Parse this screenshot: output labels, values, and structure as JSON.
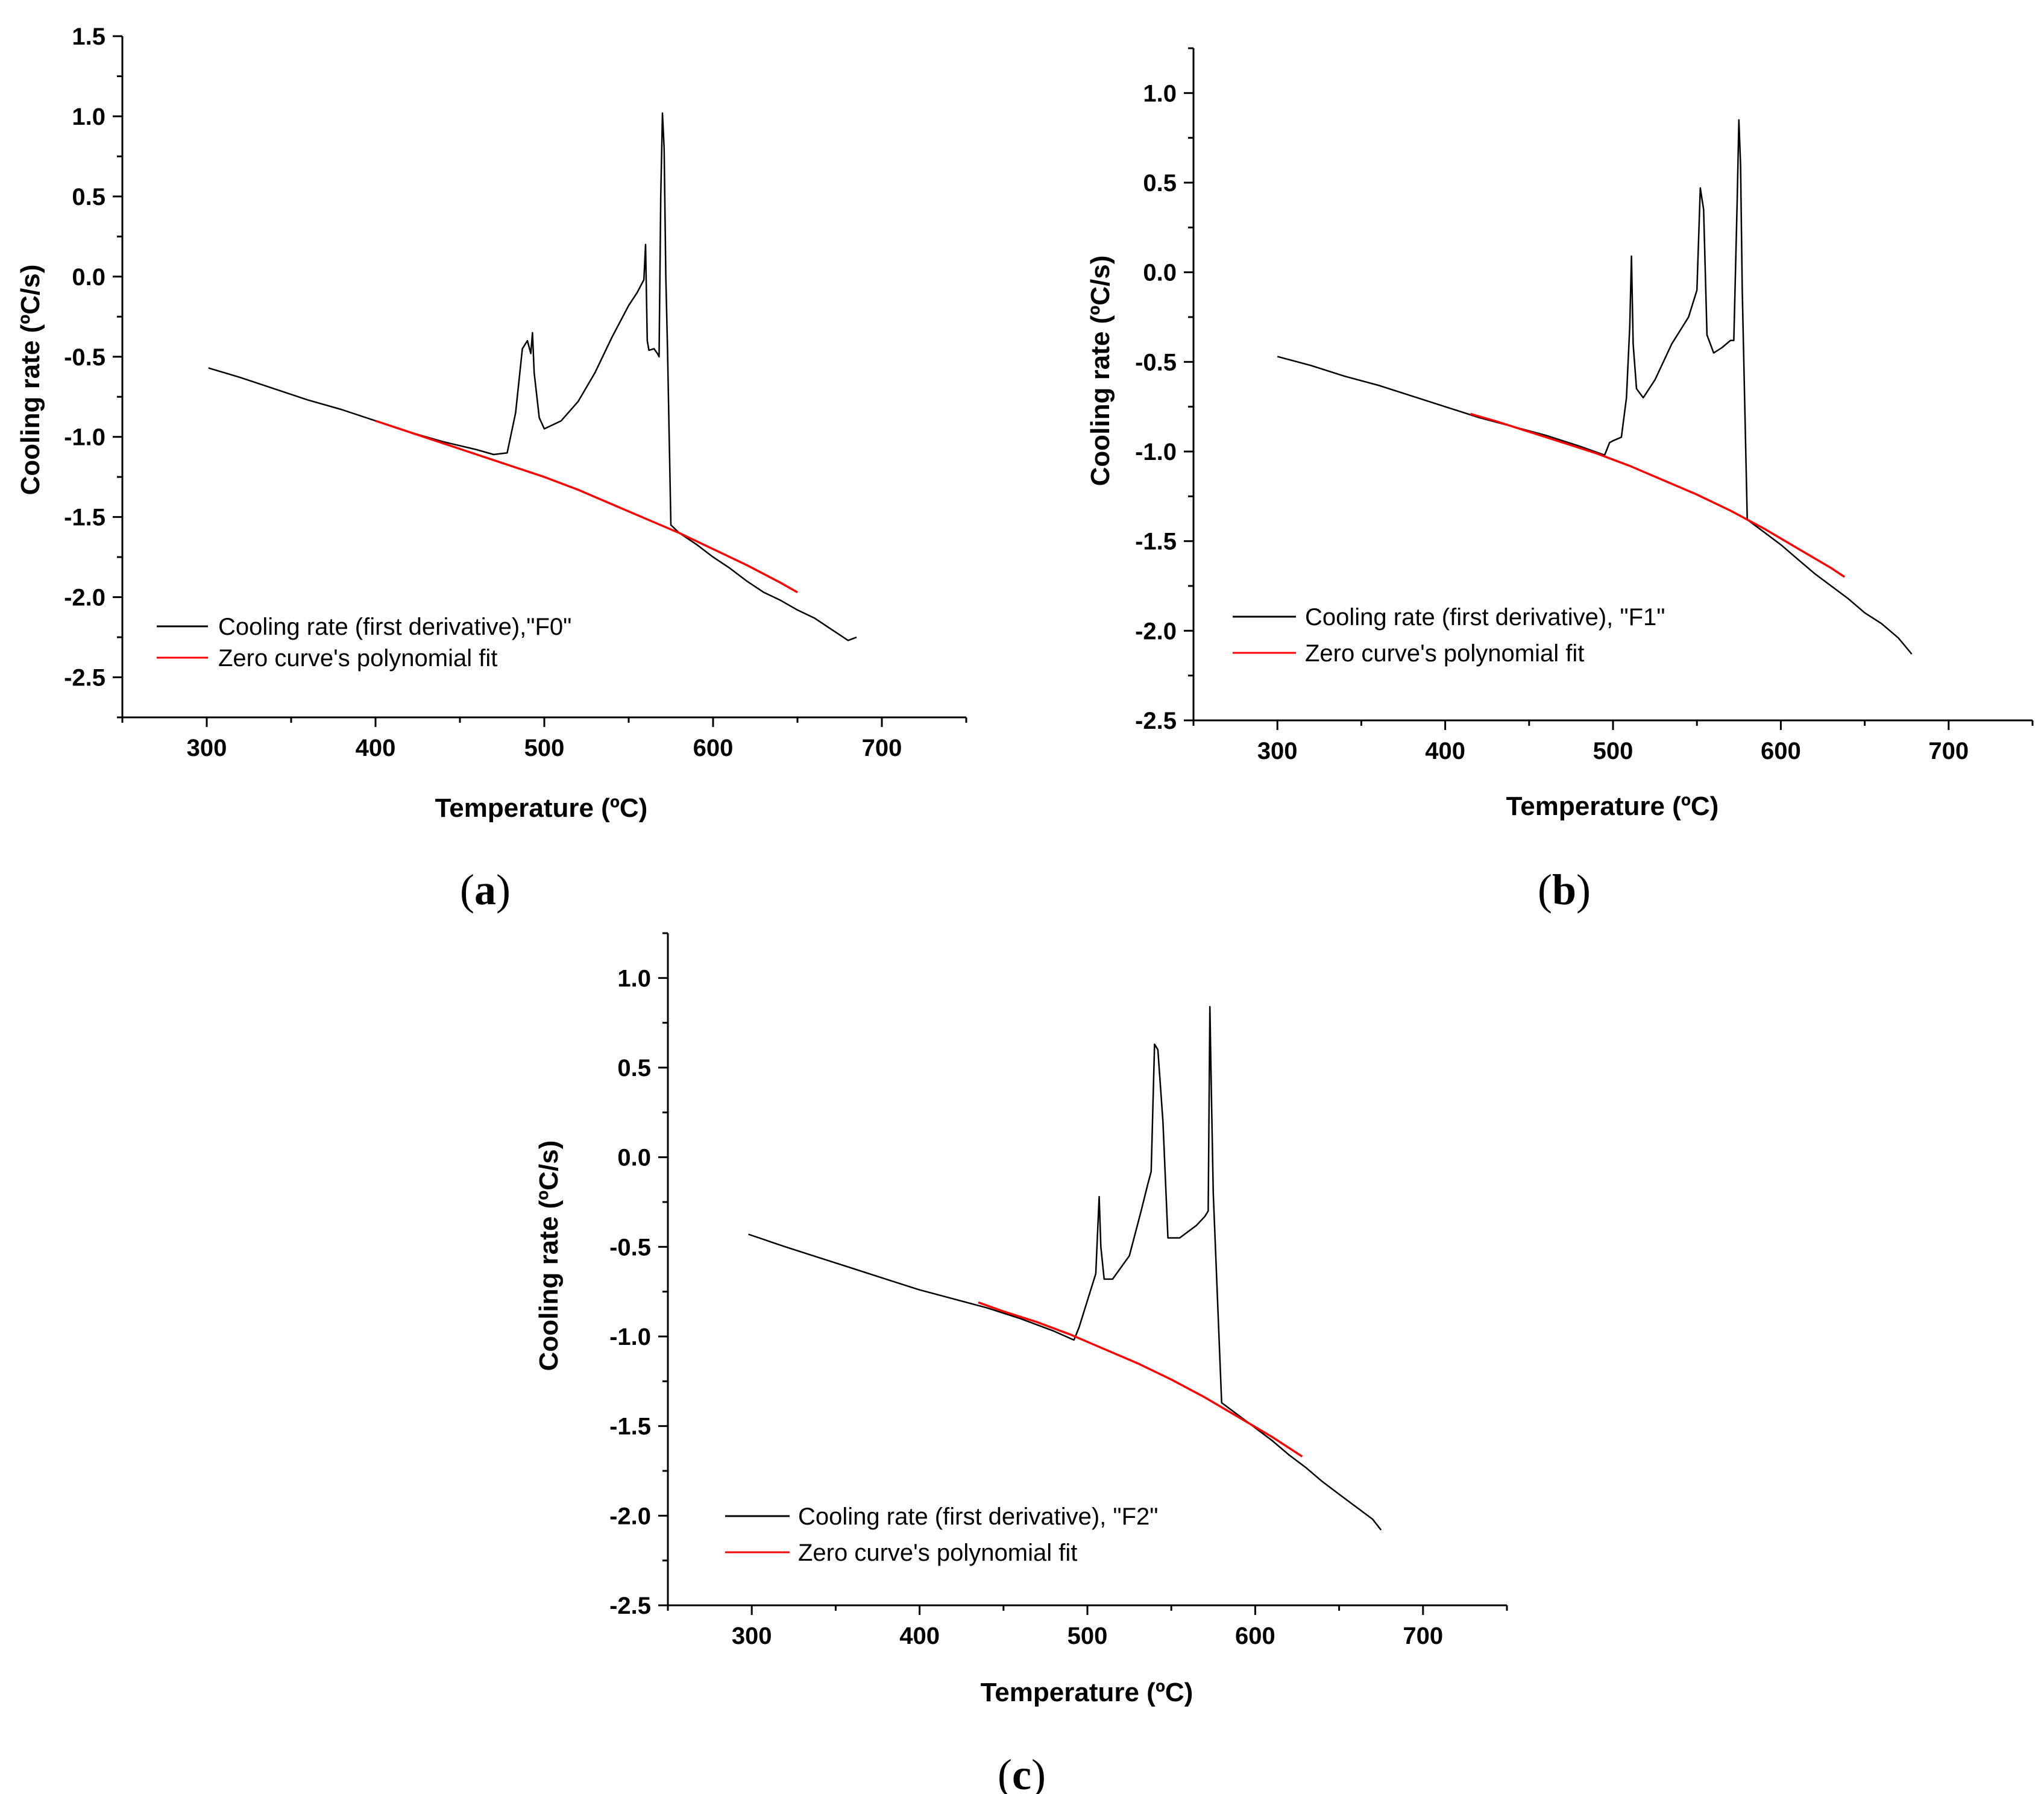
{
  "figure": {
    "panels": [
      {
        "id": "a",
        "panel_label": "a",
        "legend": {
          "black_label": "Cooling rate (first derivative),\"F0\"",
          "red_label": "Zero curve's polynomial fit"
        }
      },
      {
        "id": "b",
        "panel_label": "b",
        "legend": {
          "black_label": "Cooling rate (first derivative), \"F1\"",
          "red_label": "Zero curve's polynomial fit"
        }
      },
      {
        "id": "c",
        "panel_label": "c",
        "legend": {
          "black_label": "Cooling rate (first derivative), \"F2\"",
          "red_label": "Zero curve's polynomial fit"
        }
      }
    ],
    "colors": {
      "cooling_rate": "#000000",
      "polynomial_fit": "#ff0000"
    }
  },
  "chart_data": [
    {
      "type": "line",
      "panel": "a",
      "xlabel": "Temperature (ºC)",
      "ylabel": "Cooling rate (ºC/s)",
      "xlim": [
        250,
        750
      ],
      "ylim": [
        -2.75,
        1.5
      ],
      "x_ticks": [
        300,
        400,
        500,
        600,
        700
      ],
      "y_ticks": [
        -2.5,
        -2.0,
        -1.5,
        -1.0,
        -0.5,
        0.0,
        0.5,
        1.0,
        1.5
      ],
      "y_tick_labels": [
        "-2.5",
        "-2.0",
        "-1.5",
        "-1.0",
        "-0.5",
        "0.0",
        "0.5",
        "1.0",
        "1.5"
      ],
      "series": [
        {
          "name": "Cooling rate (first derivative),\"F0\"",
          "color": "#000000",
          "x": [
            301,
            320,
            340,
            360,
            380,
            400,
            420,
            440,
            460,
            470,
            478,
            483,
            487,
            490,
            492,
            493,
            494,
            497,
            500,
            510,
            520,
            530,
            540,
            550,
            555,
            559,
            560,
            561,
            562,
            565,
            567,
            568,
            569,
            570,
            571,
            572,
            573,
            575,
            580,
            590,
            600,
            610,
            620,
            630,
            640,
            650,
            660,
            670,
            680,
            685
          ],
          "y": [
            -0.57,
            -0.63,
            -0.7,
            -0.77,
            -0.83,
            -0.9,
            -0.97,
            -1.03,
            -1.08,
            -1.11,
            -1.1,
            -0.85,
            -0.45,
            -0.4,
            -0.48,
            -0.35,
            -0.6,
            -0.88,
            -0.95,
            -0.9,
            -0.78,
            -0.6,
            -0.38,
            -0.18,
            -0.1,
            -0.02,
            0.2,
            -0.4,
            -0.46,
            -0.45,
            -0.48,
            -0.5,
            0.5,
            1.02,
            0.8,
            0.0,
            -0.45,
            -1.55,
            -1.6,
            -1.67,
            -1.75,
            -1.82,
            -1.9,
            -1.97,
            -2.02,
            -2.08,
            -2.13,
            -2.2,
            -2.27,
            -2.25
          ]
        },
        {
          "name": "Zero curve's polynomial fit",
          "color": "#ff0000",
          "x": [
            400,
            420,
            440,
            460,
            480,
            500,
            520,
            540,
            560,
            580,
            600,
            620,
            640,
            650
          ],
          "y": [
            -0.9,
            -0.97,
            -1.04,
            -1.11,
            -1.18,
            -1.25,
            -1.33,
            -1.42,
            -1.51,
            -1.6,
            -1.7,
            -1.8,
            -1.91,
            -1.97
          ]
        }
      ]
    },
    {
      "type": "line",
      "panel": "b",
      "xlabel": "Temperature (ºC)",
      "ylabel": "Cooling rate (ºC/s)",
      "xlim": [
        250,
        750
      ],
      "ylim": [
        -2.5,
        1.25
      ],
      "x_ticks": [
        300,
        400,
        500,
        600,
        700
      ],
      "y_ticks": [
        -2.5,
        -2.0,
        -1.5,
        -1.0,
        -0.5,
        0.0,
        0.5,
        1.0
      ],
      "y_tick_labels": [
        "-2.5",
        "-2.0",
        "-1.5",
        "-1.0",
        "-0.5",
        "0.0",
        "0.5",
        "1.0"
      ],
      "series": [
        {
          "name": "Cooling rate (first derivative), \"F1\"",
          "color": "#000000",
          "x": [
            300,
            320,
            340,
            360,
            380,
            400,
            420,
            440,
            460,
            480,
            495,
            498,
            500,
            505,
            508,
            510,
            511,
            512,
            514,
            518,
            525,
            535,
            545,
            550,
            552,
            554,
            556,
            560,
            565,
            570,
            572,
            574,
            575,
            576,
            577,
            580,
            590,
            600,
            610,
            620,
            630,
            640,
            650,
            660,
            670,
            678
          ],
          "y": [
            -0.47,
            -0.52,
            -0.58,
            -0.63,
            -0.69,
            -0.75,
            -0.81,
            -0.86,
            -0.91,
            -0.97,
            -1.02,
            -0.95,
            -0.94,
            -0.92,
            -0.7,
            -0.3,
            0.09,
            -0.4,
            -0.65,
            -0.7,
            -0.6,
            -0.4,
            -0.25,
            -0.1,
            0.47,
            0.35,
            -0.35,
            -0.45,
            -0.42,
            -0.38,
            -0.38,
            0.4,
            0.85,
            0.6,
            -0.1,
            -1.38,
            -1.45,
            -1.52,
            -1.6,
            -1.68,
            -1.75,
            -1.82,
            -1.9,
            -1.96,
            -2.04,
            -2.13
          ]
        },
        {
          "name": "Zero curve's polynomial fit",
          "color": "#ff0000",
          "x": [
            415,
            430,
            450,
            470,
            490,
            510,
            530,
            550,
            570,
            590,
            610,
            630,
            638
          ],
          "y": [
            -0.79,
            -0.83,
            -0.89,
            -0.95,
            -1.01,
            -1.08,
            -1.16,
            -1.24,
            -1.33,
            -1.43,
            -1.54,
            -1.65,
            -1.7
          ]
        }
      ]
    },
    {
      "type": "line",
      "panel": "c",
      "xlabel": "Temperature (ºC)",
      "ylabel": "Cooling rate (ºC/s)",
      "xlim": [
        250,
        750
      ],
      "ylim": [
        -2.5,
        1.25
      ],
      "x_ticks": [
        300,
        400,
        500,
        600,
        700
      ],
      "y_ticks": [
        -2.5,
        -2.0,
        -1.5,
        -1.0,
        -0.5,
        0.0,
        0.5,
        1.0
      ],
      "y_tick_labels": [
        "-2.5",
        "-2.0",
        "-1.5",
        "-1.0",
        "-0.5",
        "0.0",
        "0.5",
        "1.0"
      ],
      "series": [
        {
          "name": "Cooling rate (first derivative), \"F2\"",
          "color": "#000000",
          "x": [
            298,
            320,
            340,
            360,
            380,
            400,
            420,
            440,
            460,
            480,
            492,
            495,
            500,
            505,
            507,
            508,
            510,
            515,
            525,
            532,
            536,
            538,
            540,
            542,
            545,
            548,
            555,
            565,
            570,
            572,
            573,
            574,
            575,
            580,
            590,
            600,
            610,
            620,
            630,
            640,
            650,
            660,
            670,
            675
          ],
          "y": [
            -0.43,
            -0.5,
            -0.56,
            -0.62,
            -0.68,
            -0.74,
            -0.79,
            -0.84,
            -0.9,
            -0.97,
            -1.02,
            -0.95,
            -0.8,
            -0.65,
            -0.22,
            -0.5,
            -0.68,
            -0.68,
            -0.55,
            -0.3,
            -0.15,
            -0.08,
            0.63,
            0.6,
            0.2,
            -0.45,
            -0.45,
            -0.38,
            -0.33,
            -0.3,
            0.84,
            0.3,
            -0.2,
            -1.37,
            -1.44,
            -1.51,
            -1.58,
            -1.66,
            -1.73,
            -1.81,
            -1.88,
            -1.95,
            -2.02,
            -2.08
          ]
        },
        {
          "name": "Zero curve's polynomial fit",
          "color": "#ff0000",
          "x": [
            435,
            450,
            470,
            490,
            510,
            530,
            550,
            570,
            590,
            610,
            628
          ],
          "y": [
            -0.81,
            -0.86,
            -0.92,
            -0.99,
            -1.07,
            -1.15,
            -1.24,
            -1.34,
            -1.45,
            -1.56,
            -1.67
          ]
        }
      ]
    }
  ]
}
